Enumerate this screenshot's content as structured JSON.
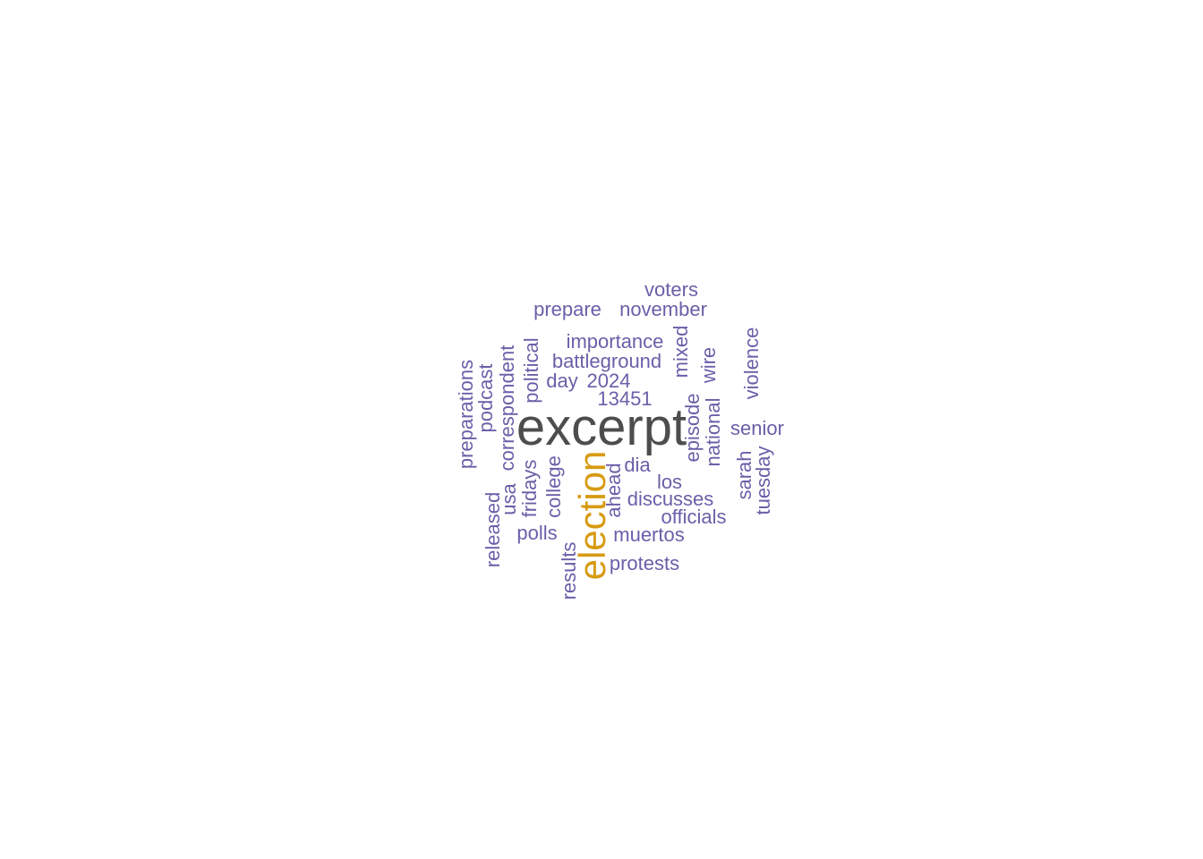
{
  "wordcloud": {
    "colors": {
      "largest": "#4d4d4d",
      "second": "#d79b12",
      "others": "#6a5fa8"
    },
    "words": [
      {
        "id": "excerpt",
        "text": "excerpt",
        "rank": 1,
        "orientation": "horizontal"
      },
      {
        "id": "election",
        "text": "election",
        "rank": 2,
        "orientation": "vertical"
      },
      {
        "id": "voters",
        "text": "voters",
        "rank": 3,
        "orientation": "horizontal"
      },
      {
        "id": "prepare",
        "text": "prepare",
        "rank": 3,
        "orientation": "horizontal"
      },
      {
        "id": "november",
        "text": "november",
        "rank": 3,
        "orientation": "horizontal"
      },
      {
        "id": "importance",
        "text": "importance",
        "rank": 3,
        "orientation": "horizontal"
      },
      {
        "id": "battleground",
        "text": "battleground",
        "rank": 3,
        "orientation": "horizontal"
      },
      {
        "id": "day",
        "text": "day",
        "rank": 3,
        "orientation": "horizontal"
      },
      {
        "id": "2024",
        "text": "2024",
        "rank": 3,
        "orientation": "horizontal"
      },
      {
        "id": "13451",
        "text": "13451",
        "rank": 3,
        "orientation": "horizontal"
      },
      {
        "id": "senior",
        "text": "senior",
        "rank": 3,
        "orientation": "horizontal"
      },
      {
        "id": "dia",
        "text": "dia",
        "rank": 3,
        "orientation": "horizontal"
      },
      {
        "id": "los",
        "text": "los",
        "rank": 3,
        "orientation": "horizontal"
      },
      {
        "id": "discusses",
        "text": "discusses",
        "rank": 3,
        "orientation": "horizontal"
      },
      {
        "id": "officials",
        "text": "officials",
        "rank": 3,
        "orientation": "horizontal"
      },
      {
        "id": "polls",
        "text": "polls",
        "rank": 3,
        "orientation": "horizontal"
      },
      {
        "id": "muertos",
        "text": "muertos",
        "rank": 3,
        "orientation": "horizontal"
      },
      {
        "id": "protests",
        "text": "protests",
        "rank": 3,
        "orientation": "horizontal"
      },
      {
        "id": "preparations",
        "text": "preparations",
        "rank": 3,
        "orientation": "vertical"
      },
      {
        "id": "podcast",
        "text": "podcast",
        "rank": 3,
        "orientation": "vertical"
      },
      {
        "id": "correspondent",
        "text": "correspondent",
        "rank": 3,
        "orientation": "vertical"
      },
      {
        "id": "political",
        "text": "political",
        "rank": 3,
        "orientation": "vertical"
      },
      {
        "id": "mixed",
        "text": "mixed",
        "rank": 3,
        "orientation": "vertical"
      },
      {
        "id": "wire",
        "text": "wire",
        "rank": 3,
        "orientation": "vertical"
      },
      {
        "id": "violence",
        "text": "violence",
        "rank": 3,
        "orientation": "vertical"
      },
      {
        "id": "episode",
        "text": "episode",
        "rank": 3,
        "orientation": "vertical"
      },
      {
        "id": "national",
        "text": "national",
        "rank": 3,
        "orientation": "vertical"
      },
      {
        "id": "sarah",
        "text": "sarah",
        "rank": 3,
        "orientation": "vertical"
      },
      {
        "id": "tuesday",
        "text": "tuesday",
        "rank": 3,
        "orientation": "vertical"
      },
      {
        "id": "released",
        "text": "released",
        "rank": 3,
        "orientation": "vertical"
      },
      {
        "id": "usa",
        "text": "usa",
        "rank": 3,
        "orientation": "vertical"
      },
      {
        "id": "fridays",
        "text": "fridays",
        "rank": 3,
        "orientation": "vertical"
      },
      {
        "id": "college",
        "text": "college",
        "rank": 3,
        "orientation": "vertical"
      },
      {
        "id": "ahead",
        "text": "ahead",
        "rank": 3,
        "orientation": "vertical"
      },
      {
        "id": "results",
        "text": "results",
        "rank": 3,
        "orientation": "vertical"
      }
    ]
  }
}
